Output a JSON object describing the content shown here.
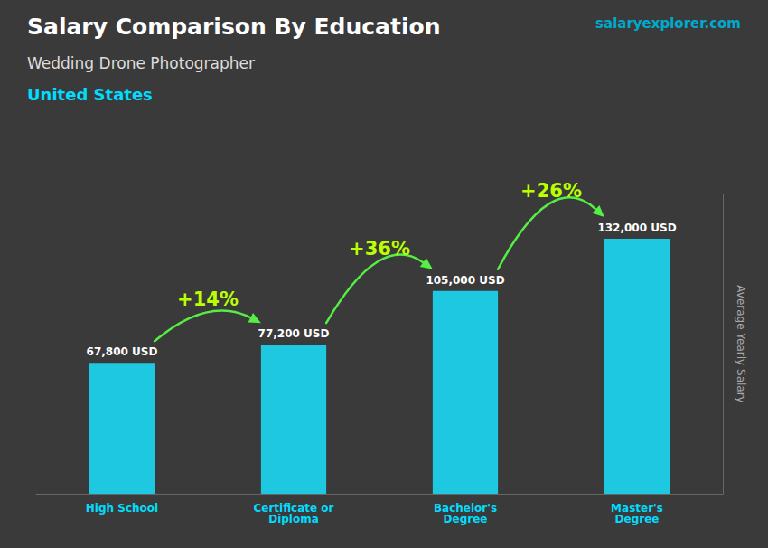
{
  "chart_data": {
    "type": "bar",
    "title": "Salary Comparison By Education",
    "subtitle": [
      "Wedding Drone Photographer",
      "United States"
    ],
    "ylabel": "Average Yearly Salary",
    "categories": [
      "High School",
      "Certificate or\nDiploma",
      "Bachelor's\nDegree",
      "Master's\nDegree"
    ],
    "values": [
      67800,
      77200,
      105000,
      132000
    ],
    "value_labels": [
      "67,800 USD",
      "77,200 USD",
      "105,000 USD",
      "132,000 USD"
    ],
    "data_labels": true,
    "color": "#1ec8e0",
    "ylim": [
      0,
      155000
    ],
    "yticks": [],
    "tick_labels": "x",
    "grid": false,
    "annotations": [
      {
        "text": "salaryexplorer.com"
      },
      {
        "text": "+14%",
        "from": "High School",
        "to": "Certificate or\nDiploma"
      },
      {
        "text": "+36%",
        "from": "Certificate or\nDiploma",
        "to": "Bachelor's\nDegree"
      },
      {
        "text": "+26%",
        "from": "Bachelor's\nDegree",
        "to": "Master's\nDegree"
      }
    ]
  }
}
